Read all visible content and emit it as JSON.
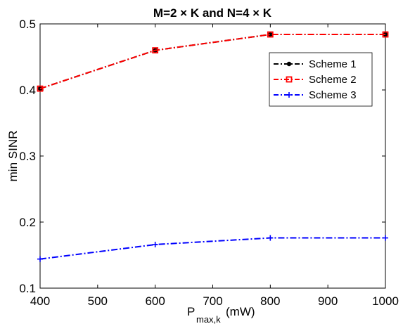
{
  "chart_data": {
    "type": "line",
    "title": "M=2 × K and N=4 × K",
    "xlabel_main": "P",
    "xlabel_sub": "max,k",
    "xlabel_unit": "(mW)",
    "ylabel": "min SINR",
    "xlim": [
      400,
      1000
    ],
    "ylim": [
      0.1,
      0.5
    ],
    "x_ticks": [
      400,
      500,
      600,
      700,
      800,
      900,
      1000
    ],
    "y_ticks": [
      0.1,
      0.2,
      0.3,
      0.4,
      0.5
    ],
    "x_tick_labels": [
      "400",
      "500",
      "600",
      "700",
      "800",
      "900",
      "1000"
    ],
    "y_tick_labels": [
      "0.1",
      "0.2",
      "0.3",
      "0.4",
      "0.5"
    ],
    "grid": false,
    "legend_position": "top-right",
    "x": [
      400,
      600,
      800,
      1000
    ],
    "series": [
      {
        "name": "Scheme 1",
        "values": [
          0.402,
          0.46,
          0.484,
          0.484
        ],
        "color": "#000000",
        "marker": "dot"
      },
      {
        "name": "Scheme 2",
        "values": [
          0.402,
          0.46,
          0.484,
          0.484
        ],
        "color": "#ff0000",
        "marker": "square"
      },
      {
        "name": "Scheme 3",
        "values": [
          0.144,
          0.166,
          0.176,
          0.176
        ],
        "color": "#0000ff",
        "marker": "plus"
      }
    ]
  }
}
